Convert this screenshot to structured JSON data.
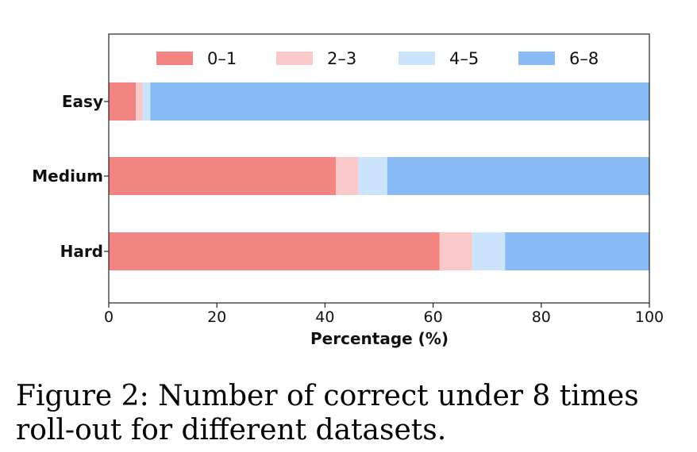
{
  "chart_data": {
    "type": "bar",
    "orientation": "horizontal",
    "stacked": true,
    "categories": [
      "Easy",
      "Medium",
      "Hard"
    ],
    "series": [
      {
        "name": "0–1",
        "color": "#f28482",
        "values": [
          5.0,
          42.0,
          61.2
        ]
      },
      {
        "name": "2–3",
        "color": "#f9c9c9",
        "values": [
          1.3,
          4.2,
          6.0
        ]
      },
      {
        "name": "4–5",
        "color": "#cce3fc",
        "values": [
          1.4,
          5.3,
          6.1
        ]
      },
      {
        "name": "6–8",
        "color": "#89bbf4",
        "values": [
          92.3,
          48.5,
          26.7
        ]
      }
    ],
    "xlabel": "Percentage (%)",
    "ylabel": "",
    "xlim": [
      0,
      100
    ],
    "xticks": [
      "0",
      "20",
      "40",
      "60",
      "80",
      "100"
    ],
    "legend": "top",
    "grid": false
  },
  "caption": {
    "text": "Figure 2: Number of correct under 8 times roll-out for different datasets."
  }
}
